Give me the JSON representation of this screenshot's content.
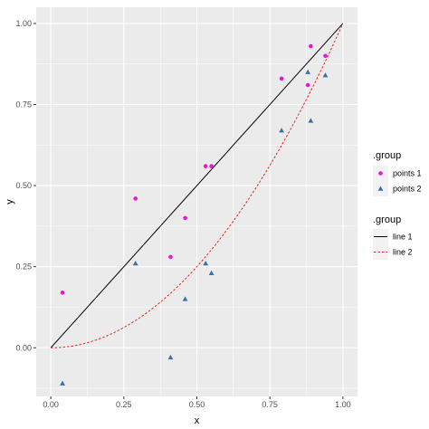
{
  "chart_data": {
    "type": "scatter",
    "xlabel": "x",
    "ylabel": "y",
    "xlim": [
      -0.05,
      1.05
    ],
    "ylim": [
      -0.15,
      1.05
    ],
    "x_ticks": [
      0.0,
      0.25,
      0.5,
      0.75,
      1.0
    ],
    "x_tick_labels": [
      "0.00",
      "0.25",
      "0.50",
      "0.75",
      "1.00"
    ],
    "y_ticks": [
      0.0,
      0.25,
      0.5,
      0.75,
      1.0
    ],
    "y_tick_labels": [
      "0.00",
      "0.25",
      "0.50",
      "0.75",
      "1.00"
    ],
    "grid": true,
    "background": "#ebebeb",
    "legend_position": "right",
    "legends": [
      {
        "title": ".group",
        "entries": [
          {
            "label": "points 1",
            "shape": "circle",
            "color": "#e41ad2"
          },
          {
            "label": "points 2",
            "shape": "triangle",
            "color": "#3a6fa8"
          }
        ]
      },
      {
        "title": ".group",
        "entries": [
          {
            "label": "line 1",
            "linetype": "solid",
            "color": "#000000"
          },
          {
            "label": "line 2",
            "linetype": "dashed",
            "color": "#e8251c"
          }
        ]
      }
    ],
    "points": [
      {
        "name": "points 1",
        "shape": "circle",
        "color": "#e41ad2",
        "x": [
          0.04,
          0.29,
          0.41,
          0.46,
          0.53,
          0.55,
          0.79,
          0.88,
          0.89,
          0.94
        ],
        "y": [
          0.17,
          0.46,
          0.28,
          0.4,
          0.56,
          0.56,
          0.83,
          0.81,
          0.93,
          0.9
        ]
      },
      {
        "name": "points 2",
        "shape": "triangle",
        "color": "#3a6fa8",
        "x": [
          0.04,
          0.29,
          0.41,
          0.46,
          0.53,
          0.55,
          0.79,
          0.88,
          0.89,
          0.94
        ],
        "y": [
          -0.11,
          0.26,
          -0.03,
          0.15,
          0.26,
          0.23,
          0.67,
          0.85,
          0.7,
          0.84
        ]
      }
    ],
    "lines": [
      {
        "name": "line 1",
        "linetype": "solid",
        "color": "#000000",
        "function": "y = x",
        "x": [
          0,
          1
        ],
        "y": [
          0,
          1
        ]
      },
      {
        "name": "line 2",
        "linetype": "dashed",
        "color": "#e8251c",
        "function": "y = x^2",
        "x": [
          0,
          0.1,
          0.2,
          0.3,
          0.4,
          0.5,
          0.6,
          0.7,
          0.8,
          0.9,
          1.0
        ],
        "y": [
          0,
          0.01,
          0.04,
          0.09,
          0.16,
          0.25,
          0.36,
          0.49,
          0.64,
          0.81,
          1.0
        ]
      }
    ]
  }
}
